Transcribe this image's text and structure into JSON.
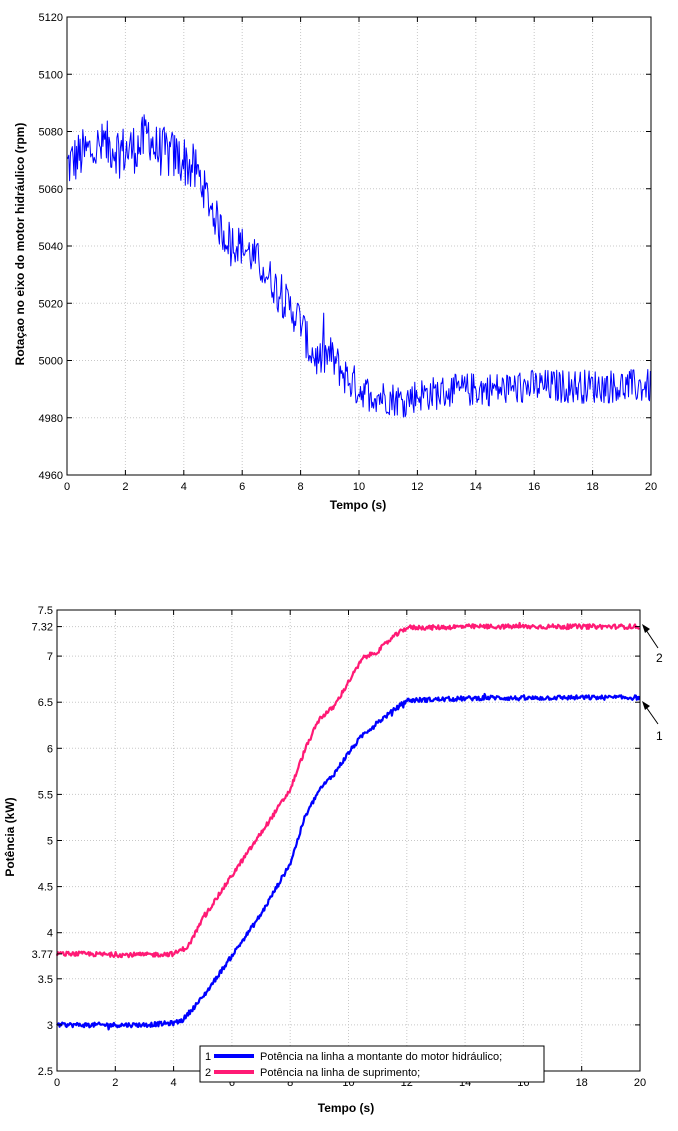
{
  "chart_data": [
    {
      "type": "line",
      "xlabel": "Tempo (s)",
      "ylabel": "Rotaçao no eixo do motor hidráulico (rpm)",
      "xlim": [
        0,
        20
      ],
      "ylim": [
        4960,
        5120
      ],
      "xticks": [
        "0",
        "2",
        "4",
        "6",
        "8",
        "10",
        "12",
        "14",
        "16",
        "18",
        "20"
      ],
      "yticks": [
        "4960",
        "4980",
        "5000",
        "5020",
        "5040",
        "5060",
        "5080",
        "5100",
        "5120"
      ],
      "grid": true,
      "series": [
        {
          "color": "#0000ff",
          "x": [
            0,
            0.5,
            1,
            1.5,
            2,
            2.5,
            2.8,
            3,
            3.5,
            4,
            4.5,
            5,
            5.3,
            5.6,
            6,
            6.5,
            7,
            7.5,
            8,
            8.3,
            8.6,
            9,
            9.5,
            10,
            10.5,
            11,
            11.5,
            12,
            13,
            14,
            15,
            16,
            17,
            18,
            19,
            20
          ],
          "values": [
            5068,
            5072,
            5074,
            5075,
            5073,
            5075,
            5080,
            5074,
            5072,
            5070,
            5065,
            5052,
            5045,
            5042,
            5040,
            5035,
            5028,
            5020,
            5014,
            5004,
            5000,
            5002,
            4995,
            4990,
            4988,
            4987,
            4986,
            4988,
            4989,
            4990,
            4990,
            4991,
            4991,
            4991,
            4991,
            4991
          ]
        }
      ]
    },
    {
      "type": "line",
      "xlabel": "Tempo (s)",
      "ylabel": "Potência (kW)",
      "xlim": [
        0,
        20
      ],
      "ylim": [
        2.5,
        7.5
      ],
      "xticks": [
        "0",
        "2",
        "4",
        "6",
        "8",
        "10",
        "12",
        "14",
        "16",
        "18",
        "20"
      ],
      "yticks": [
        "2.5",
        "3",
        "3.5",
        "3.77",
        "4",
        "4.5",
        "5",
        "5.5",
        "6",
        "6.5",
        "7",
        "7.32",
        "7.5"
      ],
      "grid": true,
      "legend_position": "bottom-center",
      "series": [
        {
          "name": "Potência na linha a montante do motor hidráulico;",
          "legend_index": "1",
          "color": "#0000ff",
          "x": [
            0,
            1,
            2,
            3,
            4,
            4.3,
            5,
            6,
            7,
            8,
            8.5,
            9,
            9.5,
            10,
            10.5,
            11,
            11.5,
            12,
            13,
            14,
            15,
            16,
            17,
            18,
            19,
            20
          ],
          "values": [
            3.0,
            3.0,
            3.0,
            3.0,
            3.02,
            3.05,
            3.3,
            3.75,
            4.2,
            4.75,
            5.25,
            5.55,
            5.72,
            5.95,
            6.15,
            6.28,
            6.4,
            6.52,
            6.53,
            6.54,
            6.55,
            6.54,
            6.55,
            6.55,
            6.55,
            6.55
          ]
        },
        {
          "name": "Potência na linha de suprimento;",
          "legend_index": "2",
          "color": "#ff1a75",
          "x": [
            0,
            1,
            2,
            3,
            4,
            4.5,
            5,
            6,
            7,
            8,
            8.5,
            9,
            9.5,
            10,
            10.5,
            11,
            11.5,
            12,
            13,
            14,
            15,
            16,
            17,
            18,
            19,
            20
          ],
          "values": [
            3.77,
            3.77,
            3.76,
            3.76,
            3.77,
            3.85,
            4.15,
            4.62,
            5.08,
            5.55,
            5.98,
            6.32,
            6.45,
            6.72,
            6.98,
            7.05,
            7.2,
            7.31,
            7.31,
            7.32,
            7.32,
            7.32,
            7.32,
            7.32,
            7.32,
            7.32
          ]
        }
      ],
      "annotations": [
        "2",
        "1"
      ]
    }
  ]
}
